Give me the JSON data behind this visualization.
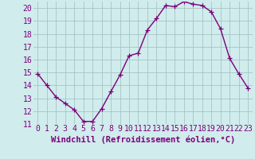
{
  "x": [
    0,
    1,
    2,
    3,
    4,
    5,
    6,
    7,
    8,
    9,
    10,
    11,
    12,
    13,
    14,
    15,
    16,
    17,
    18,
    19,
    20,
    21,
    22,
    23
  ],
  "y": [
    14.9,
    14.0,
    13.1,
    12.6,
    12.1,
    11.2,
    11.2,
    12.2,
    13.5,
    14.8,
    16.3,
    16.5,
    18.3,
    19.2,
    20.2,
    20.1,
    20.5,
    20.3,
    20.2,
    19.7,
    18.4,
    16.1,
    14.9,
    13.8
  ],
  "line_color": "#7b007b",
  "marker": "+",
  "marker_size": 4,
  "xlabel": "Windchill (Refroidissement éolien,°C)",
  "xlabel_fontsize": 7.5,
  "xlim_min": -0.5,
  "xlim_max": 23.5,
  "ylim_min": 11,
  "ylim_max": 20.5,
  "yticks": [
    11,
    12,
    13,
    14,
    15,
    16,
    17,
    18,
    19,
    20
  ],
  "xticks": [
    0,
    1,
    2,
    3,
    4,
    5,
    6,
    7,
    8,
    9,
    10,
    11,
    12,
    13,
    14,
    15,
    16,
    17,
    18,
    19,
    20,
    21,
    22,
    23
  ],
  "grid_color": "#9ebebe",
  "background_color": "#d0ecec",
  "tick_fontsize": 7,
  "line_width": 1.0,
  "label_color": "#7b007b"
}
